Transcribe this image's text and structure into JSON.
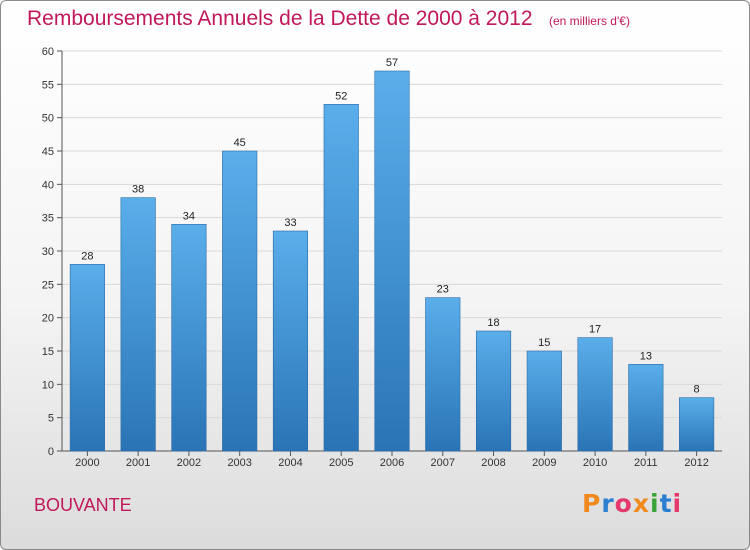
{
  "title": "Remboursements Annuels de la Dette de 2000 à 2012",
  "unit_note": "(en milliers d'€)",
  "place": "BOUVANTE",
  "logo": {
    "letters": [
      "P",
      "r",
      "o",
      "x",
      "i",
      "t",
      "i"
    ],
    "colors": [
      "#f08a1e",
      "#2a7fd1",
      "#e5386b",
      "#f08a1e",
      "#3aa33a",
      "#2a7fd1",
      "#e5386b"
    ]
  },
  "colors": {
    "title": "#c0185a",
    "bar_top": "#5aaeea",
    "bar_bottom": "#2a74b6",
    "grid": "#d9d9d9"
  },
  "chart_data": {
    "type": "bar",
    "categories": [
      "2000",
      "2001",
      "2002",
      "2003",
      "2004",
      "2005",
      "2006",
      "2007",
      "2008",
      "2009",
      "2010",
      "2011",
      "2012"
    ],
    "values": [
      28,
      38,
      34,
      45,
      33,
      52,
      57,
      23,
      18,
      15,
      17,
      13,
      8
    ],
    "ylim": [
      0,
      60
    ],
    "yticks": [
      0,
      5,
      10,
      15,
      20,
      25,
      30,
      35,
      40,
      45,
      50,
      55,
      60
    ],
    "grid": true,
    "data_labels": true
  }
}
